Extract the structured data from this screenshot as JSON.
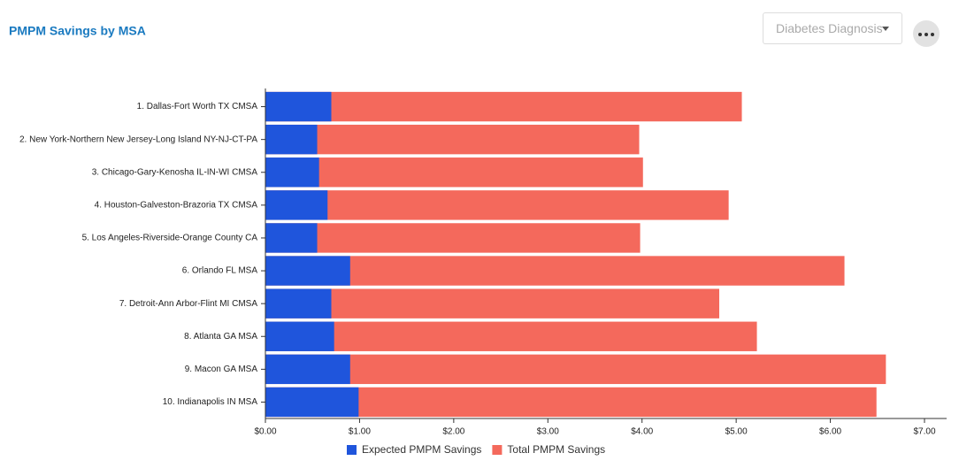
{
  "chart_data": {
    "type": "bar",
    "orientation": "horizontal",
    "title": "PMPM Savings by MSA",
    "filter": "Diabetes Diagnosis",
    "categories": [
      "1. Dallas-Fort Worth TX CMSA",
      "2. New York-Northern New Jersey-Long Island NY-NJ-CT-PA",
      "3. Chicago-Gary-Kenosha IL-IN-WI CMSA",
      "4. Houston-Galveston-Brazoria TX CMSA",
      "5. Los Angeles-Riverside-Orange County CA",
      "6. Orlando FL MSA",
      "7. Detroit-Ann Arbor-Flint MI CMSA",
      "8. Atlanta GA MSA",
      "9. Macon GA MSA",
      "10. Indianapolis IN MSA"
    ],
    "series": [
      {
        "name": "Total PMPM Savings",
        "color": "#f4695c",
        "values": [
          5.06,
          3.97,
          4.01,
          4.92,
          3.98,
          6.15,
          4.82,
          5.22,
          6.59,
          6.49
        ]
      },
      {
        "name": "Expected PMPM Savings",
        "color": "#1f55dc",
        "values": [
          0.7,
          0.55,
          0.57,
          0.66,
          0.55,
          0.9,
          0.7,
          0.73,
          0.9,
          0.99
        ]
      }
    ],
    "legend_order": [
      1,
      0
    ],
    "xlim": [
      0,
      7
    ],
    "xticks": [
      {
        "value": 0,
        "label": "$0.00"
      },
      {
        "value": 1,
        "label": "$1.00"
      },
      {
        "value": 2,
        "label": "$2.00"
      },
      {
        "value": 3,
        "label": "$3.00"
      },
      {
        "value": 4,
        "label": "$4.00"
      },
      {
        "value": 5,
        "label": "$5.00"
      },
      {
        "value": 6,
        "label": "$6.00"
      },
      {
        "value": 7,
        "label": "$7.00"
      }
    ]
  }
}
